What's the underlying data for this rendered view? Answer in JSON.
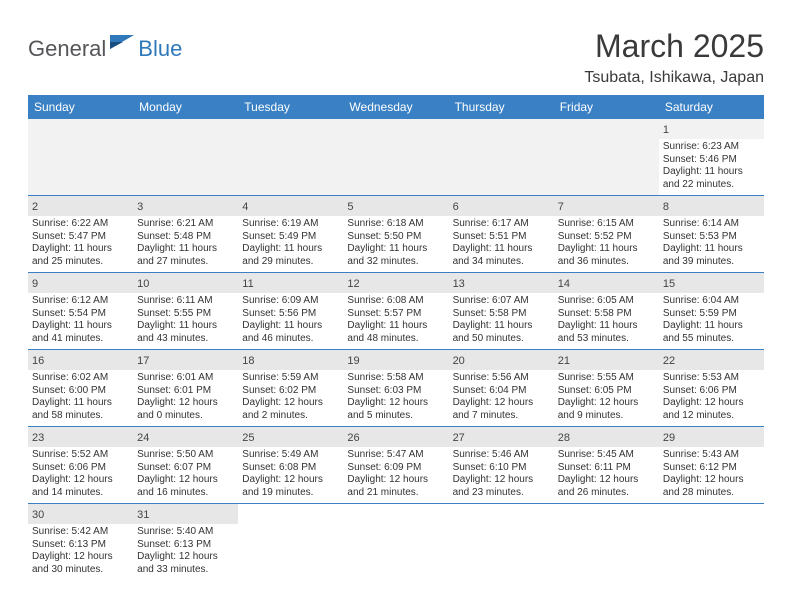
{
  "brand": {
    "part1": "General",
    "part2": "Blue"
  },
  "title": "March 2025",
  "location": "Tsubata, Ishikawa, Japan",
  "colors": {
    "header_bg": "#3a80c4",
    "header_fg": "#ffffff",
    "brand_gray": "#56565a",
    "brand_blue": "#2f79bb",
    "daynum_bg": "#e7e7e7",
    "blank_bg": "#f2f2f2",
    "rule": "#3a80c4"
  },
  "weekdays": [
    "Sunday",
    "Monday",
    "Tuesday",
    "Wednesday",
    "Thursday",
    "Friday",
    "Saturday"
  ],
  "weeks": [
    [
      null,
      null,
      null,
      null,
      null,
      null,
      {
        "n": "1",
        "sr": "6:23 AM",
        "ss": "5:46 PM",
        "dl": "11 hours and 22 minutes."
      }
    ],
    [
      {
        "n": "2",
        "sr": "6:22 AM",
        "ss": "5:47 PM",
        "dl": "11 hours and 25 minutes."
      },
      {
        "n": "3",
        "sr": "6:21 AM",
        "ss": "5:48 PM",
        "dl": "11 hours and 27 minutes."
      },
      {
        "n": "4",
        "sr": "6:19 AM",
        "ss": "5:49 PM",
        "dl": "11 hours and 29 minutes."
      },
      {
        "n": "5",
        "sr": "6:18 AM",
        "ss": "5:50 PM",
        "dl": "11 hours and 32 minutes."
      },
      {
        "n": "6",
        "sr": "6:17 AM",
        "ss": "5:51 PM",
        "dl": "11 hours and 34 minutes."
      },
      {
        "n": "7",
        "sr": "6:15 AM",
        "ss": "5:52 PM",
        "dl": "11 hours and 36 minutes."
      },
      {
        "n": "8",
        "sr": "6:14 AM",
        "ss": "5:53 PM",
        "dl": "11 hours and 39 minutes."
      }
    ],
    [
      {
        "n": "9",
        "sr": "6:12 AM",
        "ss": "5:54 PM",
        "dl": "11 hours and 41 minutes."
      },
      {
        "n": "10",
        "sr": "6:11 AM",
        "ss": "5:55 PM",
        "dl": "11 hours and 43 minutes."
      },
      {
        "n": "11",
        "sr": "6:09 AM",
        "ss": "5:56 PM",
        "dl": "11 hours and 46 minutes."
      },
      {
        "n": "12",
        "sr": "6:08 AM",
        "ss": "5:57 PM",
        "dl": "11 hours and 48 minutes."
      },
      {
        "n": "13",
        "sr": "6:07 AM",
        "ss": "5:58 PM",
        "dl": "11 hours and 50 minutes."
      },
      {
        "n": "14",
        "sr": "6:05 AM",
        "ss": "5:58 PM",
        "dl": "11 hours and 53 minutes."
      },
      {
        "n": "15",
        "sr": "6:04 AM",
        "ss": "5:59 PM",
        "dl": "11 hours and 55 minutes."
      }
    ],
    [
      {
        "n": "16",
        "sr": "6:02 AM",
        "ss": "6:00 PM",
        "dl": "11 hours and 58 minutes."
      },
      {
        "n": "17",
        "sr": "6:01 AM",
        "ss": "6:01 PM",
        "dl": "12 hours and 0 minutes."
      },
      {
        "n": "18",
        "sr": "5:59 AM",
        "ss": "6:02 PM",
        "dl": "12 hours and 2 minutes."
      },
      {
        "n": "19",
        "sr": "5:58 AM",
        "ss": "6:03 PM",
        "dl": "12 hours and 5 minutes."
      },
      {
        "n": "20",
        "sr": "5:56 AM",
        "ss": "6:04 PM",
        "dl": "12 hours and 7 minutes."
      },
      {
        "n": "21",
        "sr": "5:55 AM",
        "ss": "6:05 PM",
        "dl": "12 hours and 9 minutes."
      },
      {
        "n": "22",
        "sr": "5:53 AM",
        "ss": "6:06 PM",
        "dl": "12 hours and 12 minutes."
      }
    ],
    [
      {
        "n": "23",
        "sr": "5:52 AM",
        "ss": "6:06 PM",
        "dl": "12 hours and 14 minutes."
      },
      {
        "n": "24",
        "sr": "5:50 AM",
        "ss": "6:07 PM",
        "dl": "12 hours and 16 minutes."
      },
      {
        "n": "25",
        "sr": "5:49 AM",
        "ss": "6:08 PM",
        "dl": "12 hours and 19 minutes."
      },
      {
        "n": "26",
        "sr": "5:47 AM",
        "ss": "6:09 PM",
        "dl": "12 hours and 21 minutes."
      },
      {
        "n": "27",
        "sr": "5:46 AM",
        "ss": "6:10 PM",
        "dl": "12 hours and 23 minutes."
      },
      {
        "n": "28",
        "sr": "5:45 AM",
        "ss": "6:11 PM",
        "dl": "12 hours and 26 minutes."
      },
      {
        "n": "29",
        "sr": "5:43 AM",
        "ss": "6:12 PM",
        "dl": "12 hours and 28 minutes."
      }
    ],
    [
      {
        "n": "30",
        "sr": "5:42 AM",
        "ss": "6:13 PM",
        "dl": "12 hours and 30 minutes."
      },
      {
        "n": "31",
        "sr": "5:40 AM",
        "ss": "6:13 PM",
        "dl": "12 hours and 33 minutes."
      },
      null,
      null,
      null,
      null,
      null
    ]
  ],
  "labels": {
    "sunrise": "Sunrise:",
    "sunset": "Sunset:",
    "daylight": "Daylight:"
  }
}
